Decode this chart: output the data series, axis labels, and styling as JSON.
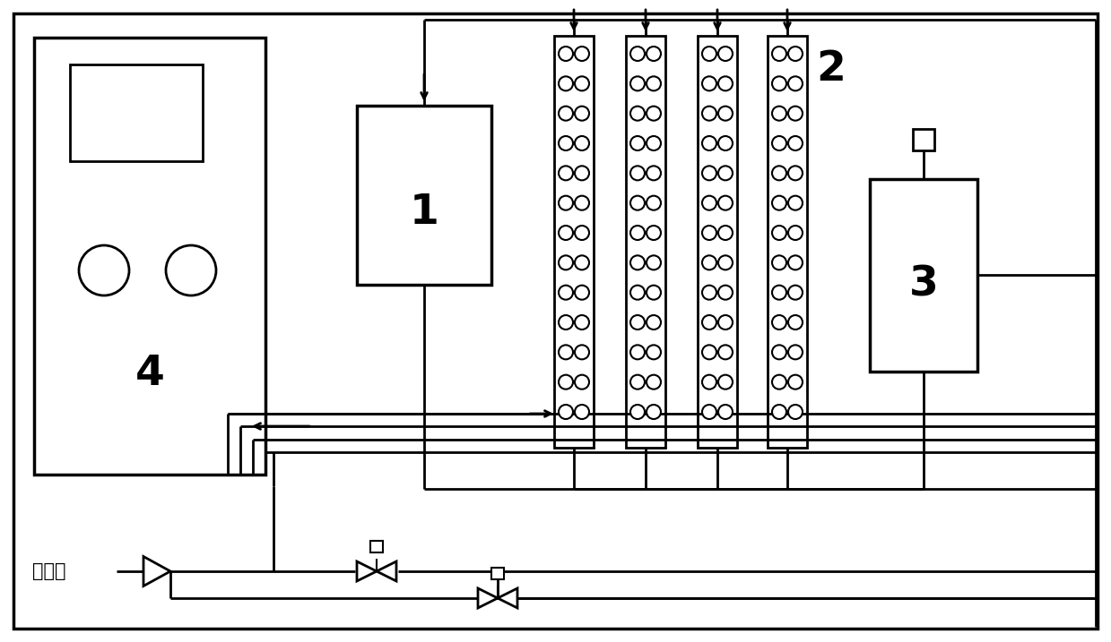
{
  "bg": "#ffffff",
  "lc": "#000000",
  "fig_w": 12.39,
  "fig_h": 7.17,
  "label_air": "仪表风",
  "lw": 2.0
}
